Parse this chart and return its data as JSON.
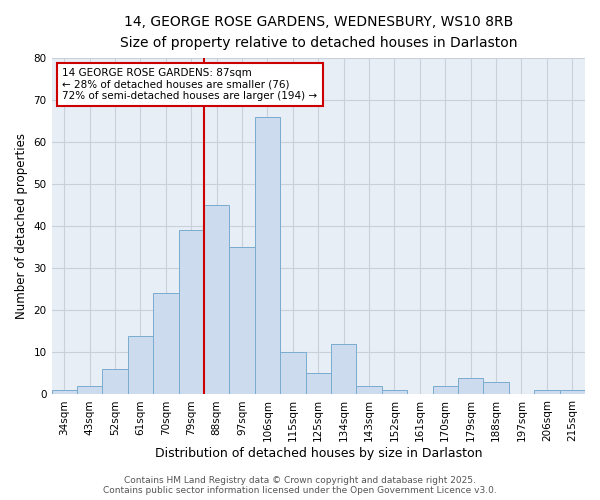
{
  "title_line1": "14, GEORGE ROSE GARDENS, WEDNESBURY, WS10 8RB",
  "title_line2": "Size of property relative to detached houses in Darlaston",
  "xlabel": "Distribution of detached houses by size in Darlaston",
  "ylabel": "Number of detached properties",
  "categories": [
    "34sqm",
    "43sqm",
    "52sqm",
    "61sqm",
    "70sqm",
    "79sqm",
    "88sqm",
    "97sqm",
    "106sqm",
    "115sqm",
    "125sqm",
    "134sqm",
    "143sqm",
    "152sqm",
    "161sqm",
    "170sqm",
    "179sqm",
    "188sqm",
    "197sqm",
    "206sqm",
    "215sqm"
  ],
  "values": [
    1,
    2,
    6,
    14,
    24,
    39,
    45,
    35,
    66,
    10,
    5,
    12,
    2,
    1,
    0,
    2,
    4,
    3,
    0,
    1,
    1
  ],
  "bar_color": "#ccdcee",
  "bar_edge_color": "#7aabcf",
  "vline_x_index": 6,
  "vline_color": "#cc0000",
  "annotation_text": "14 GEORGE ROSE GARDENS: 87sqm\n← 28% of detached houses are smaller (76)\n72% of semi-detached houses are larger (194) →",
  "annotation_box_facecolor": "#ffffff",
  "annotation_box_edgecolor": "#cc0000",
  "ylim": [
    0,
    80
  ],
  "yticks": [
    0,
    10,
    20,
    30,
    40,
    50,
    60,
    70,
    80
  ],
  "grid_color": "#c8d0dc",
  "plot_bg_color": "#e8eef6",
  "fig_bg_color": "#ffffff",
  "title_fontsize": 10,
  "subtitle_fontsize": 9.5,
  "xlabel_fontsize": 9,
  "ylabel_fontsize": 8.5,
  "tick_fontsize": 7.5,
  "annotation_fontsize": 7.5,
  "footer_fontsize": 6.5,
  "footer_text": "Contains HM Land Registry data © Crown copyright and database right 2025.\nContains public sector information licensed under the Open Government Licence v3.0."
}
